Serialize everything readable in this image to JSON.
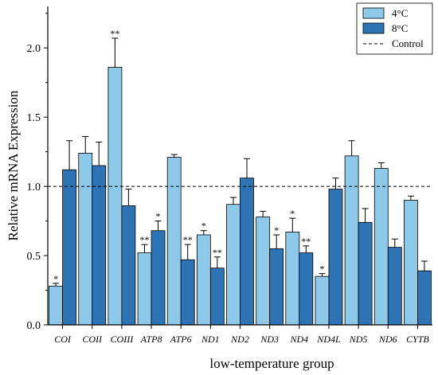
{
  "chart_data": {
    "type": "bar",
    "xlabel": "low-temperature group",
    "ylabel": "Relative mRNA Expression",
    "ylim": [
      0,
      2.3
    ],
    "yticks": [
      0.0,
      0.5,
      1.0,
      1.5,
      2.0
    ],
    "ytick_labels": [
      "0.0",
      "0.5",
      "1.0",
      "1.5",
      "2.0"
    ],
    "categories": [
      "COI",
      "COII",
      "COIII",
      "ATP8",
      "ATP6",
      "ND1",
      "ND2",
      "ND3",
      "ND4",
      "ND4L",
      "ND5",
      "ND6",
      "CYTB"
    ],
    "series": [
      {
        "name": "4°C",
        "color": "#8ec9ea",
        "values": [
          0.28,
          1.24,
          1.86,
          0.52,
          1.21,
          0.65,
          0.87,
          0.78,
          0.67,
          0.35,
          1.22,
          1.13,
          0.9
        ],
        "errors": [
          0.02,
          0.12,
          0.21,
          0.06,
          0.02,
          0.03,
          0.05,
          0.04,
          0.1,
          0.02,
          0.11,
          0.04,
          0.03
        ],
        "significance": [
          "*",
          "",
          "**",
          "**",
          "",
          "*",
          "",
          "",
          "*",
          "*",
          "",
          "",
          ""
        ]
      },
      {
        "name": "8°C",
        "color": "#2e74b5",
        "values": [
          1.12,
          1.15,
          0.86,
          0.68,
          0.47,
          0.41,
          1.06,
          0.55,
          0.52,
          0.98,
          0.74,
          0.56,
          0.39
        ],
        "errors": [
          0.21,
          0.17,
          0.12,
          0.07,
          0.11,
          0.08,
          0.14,
          0.1,
          0.05,
          0.08,
          0.1,
          0.06,
          0.07
        ],
        "significance": [
          "",
          "",
          "",
          "*",
          "**",
          "**",
          "",
          "*",
          "**",
          "",
          "",
          "",
          ""
        ]
      }
    ],
    "reference_line": {
      "name": "Control",
      "value": 1.0,
      "style": "dashed"
    },
    "legend": {
      "position": "top-right",
      "entries": [
        "4°C",
        "8°C",
        "Control"
      ]
    },
    "grid": false
  }
}
